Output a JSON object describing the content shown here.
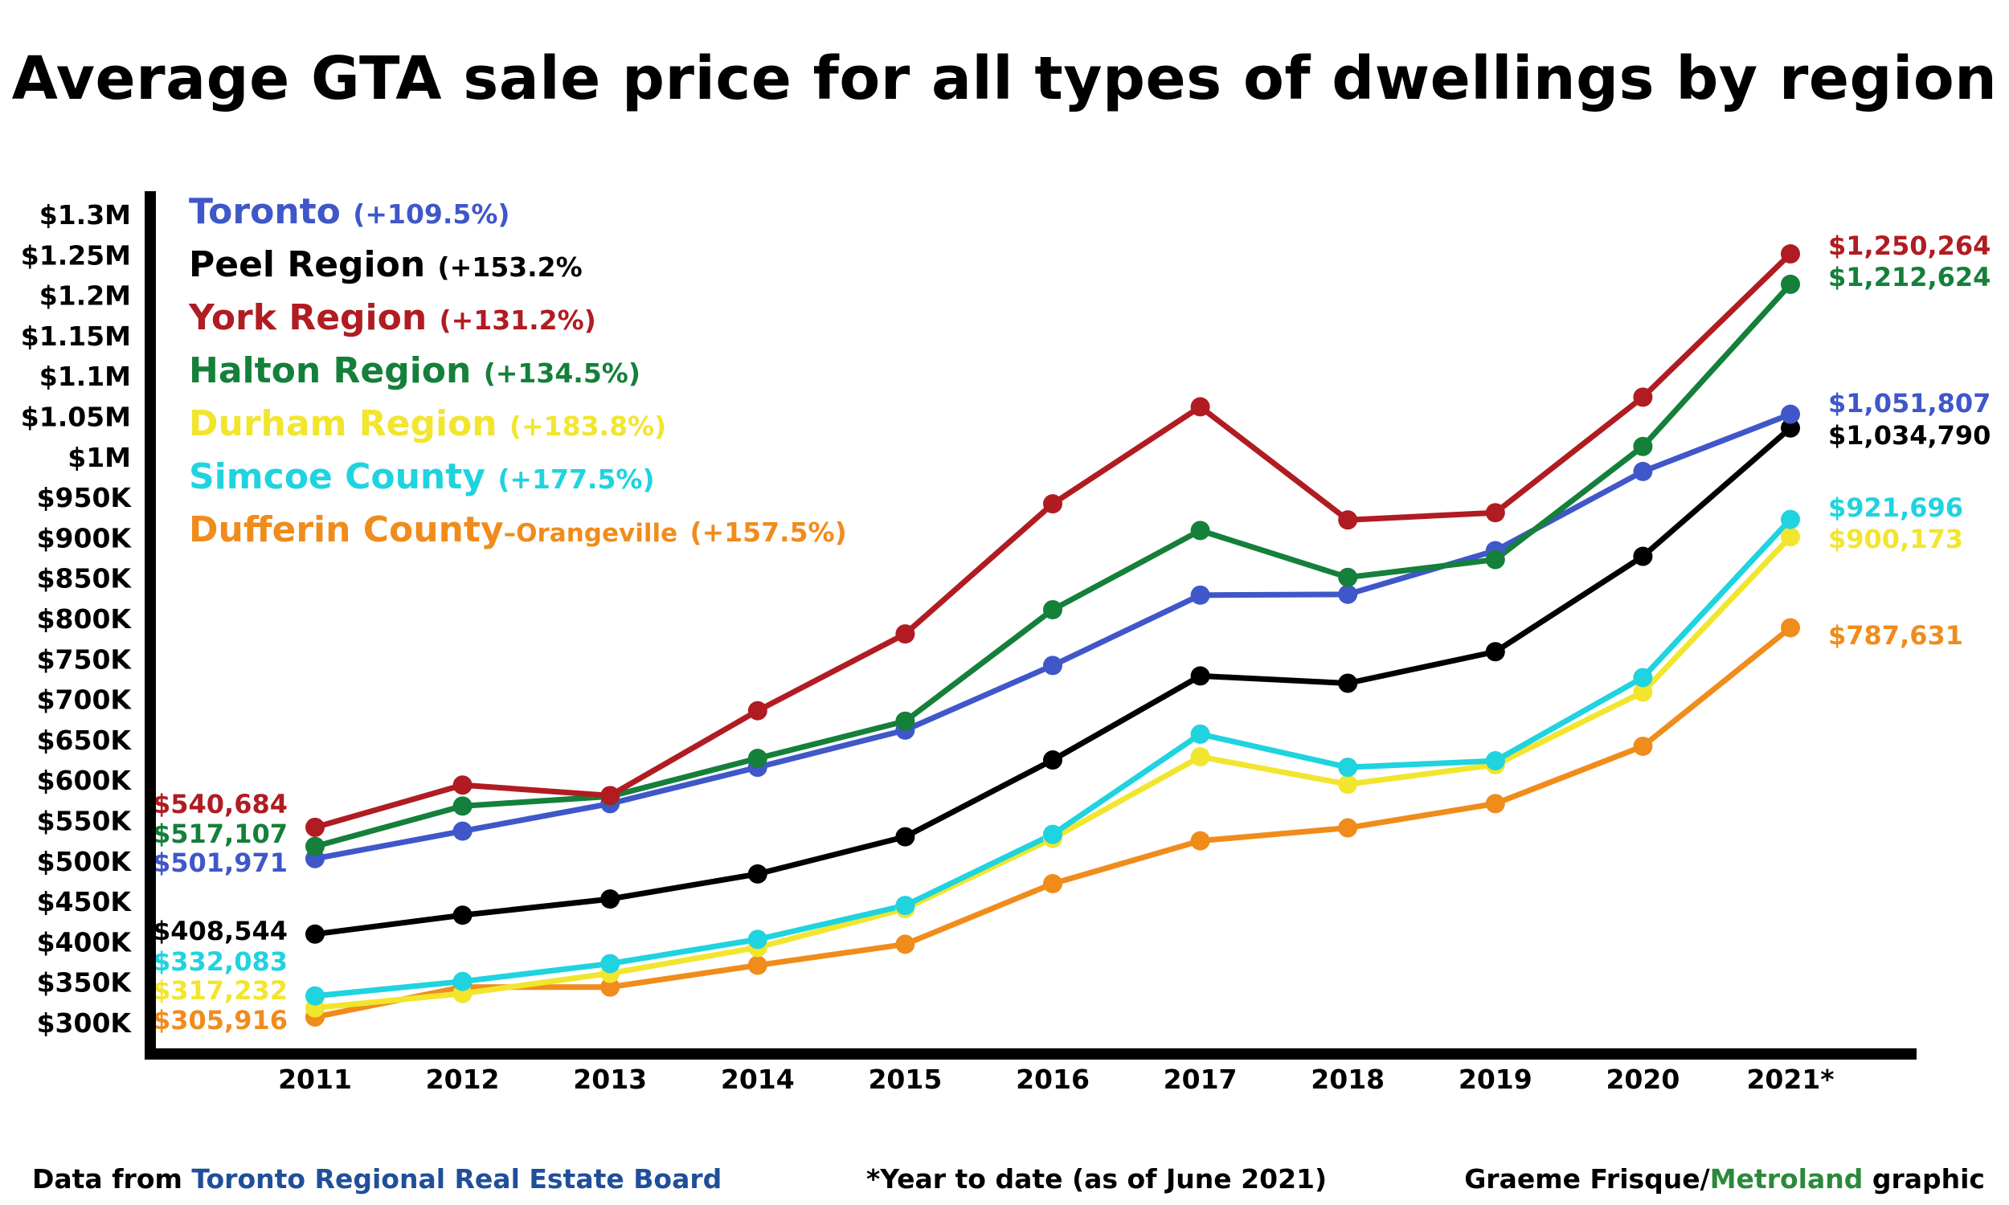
{
  "title": "Average GTA sale price for all types of dwellings by region",
  "legend": [
    {
      "name": "Toronto",
      "change": "(+109.5%)",
      "color": "#3f57c8"
    },
    {
      "name": "Peel Region",
      "change": "(+153.2%",
      "color": "#000000"
    },
    {
      "name": "York Region",
      "change": "(+131.2%)",
      "color": "#b01c22"
    },
    {
      "name": "Halton Region",
      "change": "(+134.5%)",
      "color": "#14803a"
    },
    {
      "name": "Durham Region",
      "change": "(+183.8%)",
      "color": "#f2e52e"
    },
    {
      "name": "Simcoe County",
      "change": "(+177.5%)",
      "color": "#1fd3df"
    },
    {
      "name": "Dufferin County",
      "sub": "–Orangeville",
      "change": "(+157.5%)",
      "color": "#f08c1c"
    }
  ],
  "footer": {
    "source_prefix": "Data from ",
    "source_name": "Toronto Regional Real Estate Board",
    "note": "*Year to date (as of June 2021)",
    "credit_name": "Graeme Frisque/",
    "credit_brand": "Metroland",
    "credit_suffix": " graphic"
  },
  "chart_data": {
    "type": "line",
    "title": "Average GTA sale price for all types of dwellings by region",
    "xlabel": "",
    "ylabel": "",
    "categories": [
      "2011",
      "2012",
      "2013",
      "2014",
      "2015",
      "2016",
      "2017",
      "2018",
      "2019",
      "2020",
      "2021*"
    ],
    "ylim": [
      300000,
      1300000
    ],
    "yticks": [
      {
        "value": 1300000,
        "label": "$1.3M"
      },
      {
        "value": 1250000,
        "label": "$1.25M"
      },
      {
        "value": 1200000,
        "label": "$1.2M"
      },
      {
        "value": 1150000,
        "label": "$1.15M"
      },
      {
        "value": 1100000,
        "label": "$1.1M"
      },
      {
        "value": 1050000,
        "label": "$1.05M"
      },
      {
        "value": 1000000,
        "label": "$1M"
      },
      {
        "value": 950000,
        "label": "$950K"
      },
      {
        "value": 900000,
        "label": "$900K"
      },
      {
        "value": 850000,
        "label": "$850K"
      },
      {
        "value": 800000,
        "label": "$800K"
      },
      {
        "value": 750000,
        "label": "$750K"
      },
      {
        "value": 700000,
        "label": "$700K"
      },
      {
        "value": 650000,
        "label": "$650K"
      },
      {
        "value": 600000,
        "label": "$600K"
      },
      {
        "value": 550000,
        "label": "$550K"
      },
      {
        "value": 500000,
        "label": "$500K"
      },
      {
        "value": 450000,
        "label": "$450K"
      },
      {
        "value": 400000,
        "label": "$400K"
      },
      {
        "value": 350000,
        "label": "$350K"
      },
      {
        "value": 300000,
        "label": "$300K"
      }
    ],
    "grid": false,
    "legend_position": "top-left",
    "series": [
      {
        "name": "Dufferin County–Orangeville",
        "color": "#f08c1c",
        "values": [
          305916,
          343000,
          343000,
          370000,
          396000,
          471000,
          524000,
          540000,
          570000,
          641000,
          787631
        ],
        "start_label": "$305,916",
        "end_label": "$787,631"
      },
      {
        "name": "Durham Region",
        "color": "#f2e52e",
        "values": [
          317232,
          335000,
          360000,
          392000,
          440000,
          527000,
          628000,
          594000,
          618000,
          708000,
          900173
        ],
        "start_label": "$317,232",
        "end_label": "$900,173"
      },
      {
        "name": "Simcoe County",
        "color": "#1fd3df",
        "values": [
          332083,
          350000,
          372000,
          402000,
          444000,
          532000,
          656000,
          615000,
          623000,
          726000,
          921696
        ],
        "start_label": "$332,083",
        "end_label": "$921,696"
      },
      {
        "name": "Peel Region",
        "color": "#000000",
        "values": [
          408544,
          432000,
          452000,
          483000,
          529000,
          624000,
          728000,
          719000,
          758000,
          876000,
          1034790
        ],
        "start_label": "$408,544",
        "end_label": "$1,034,790"
      },
      {
        "name": "Toronto",
        "color": "#3f57c8",
        "values": [
          501971,
          536000,
          570000,
          615000,
          661000,
          741000,
          828000,
          829000,
          883000,
          981000,
          1051807
        ],
        "start_label": "$501,971",
        "end_label": "$1,051,807"
      },
      {
        "name": "Halton Region",
        "color": "#14803a",
        "values": [
          517107,
          567000,
          579000,
          626000,
          672000,
          810000,
          908000,
          850000,
          872000,
          1012000,
          1212624
        ],
        "start_label": "$517,107",
        "end_label": "$1,212,624"
      },
      {
        "name": "York Region",
        "color": "#b01c22",
        "values": [
          540684,
          593000,
          580000,
          685000,
          780000,
          941000,
          1061000,
          921000,
          930000,
          1073000,
          1250264
        ],
        "start_label": "$540,684",
        "end_label": "$1,250,264"
      }
    ]
  }
}
